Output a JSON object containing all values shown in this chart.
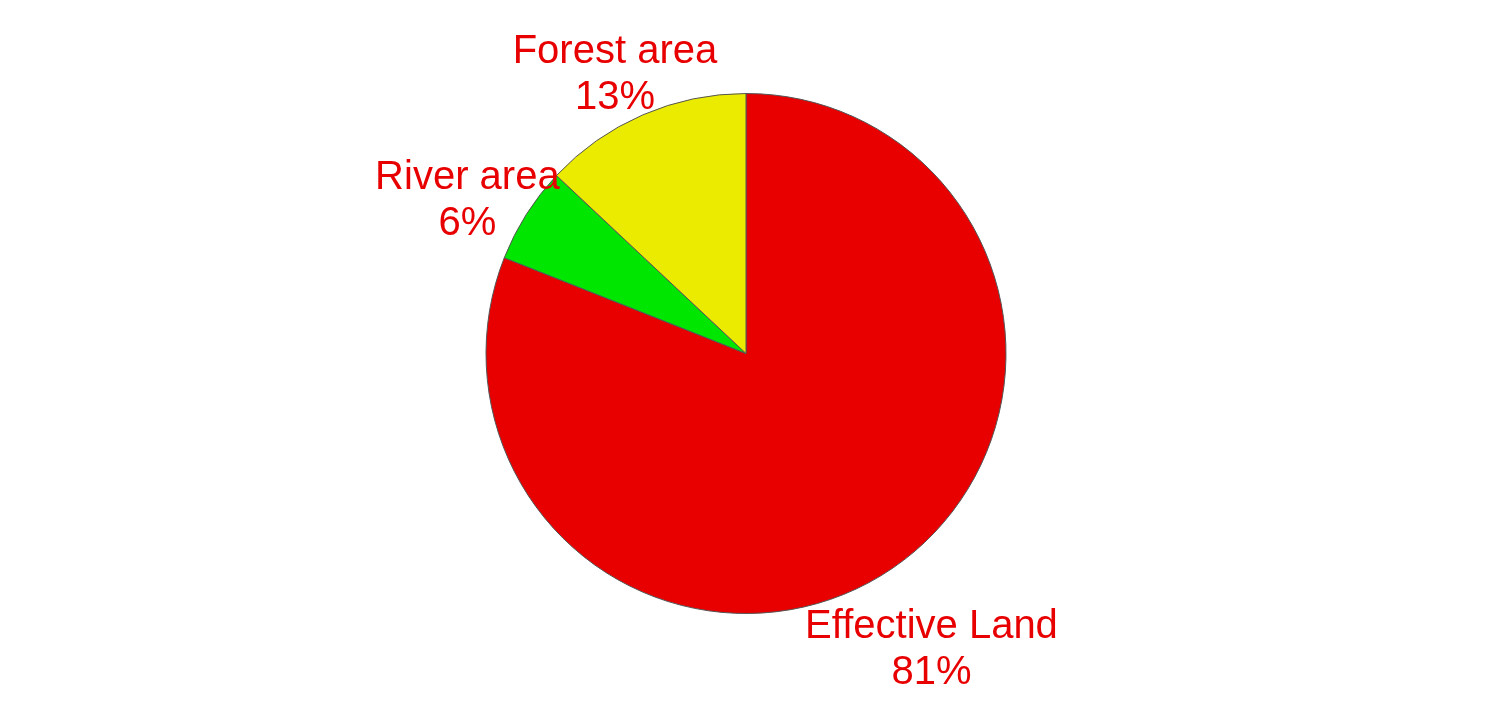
{
  "chart_data": {
    "type": "pie",
    "categories": [
      "Effective Land",
      "River area",
      "Forest area"
    ],
    "values": [
      81,
      6,
      13
    ],
    "value_labels": [
      "81%",
      "6%",
      "13%"
    ],
    "colors": [
      "#e80000",
      "#00e600",
      "#ebeb00"
    ],
    "legend": false
  }
}
